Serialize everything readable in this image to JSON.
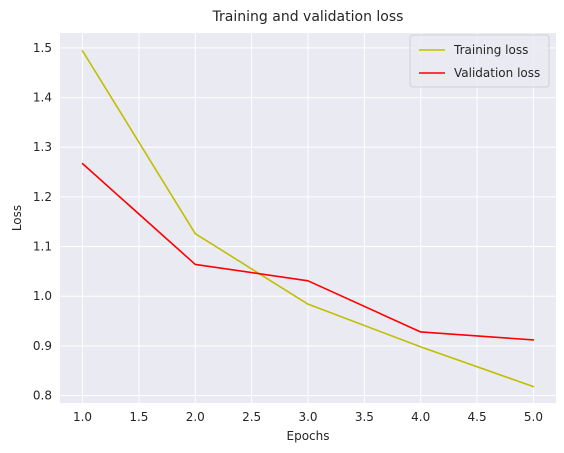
{
  "chart_data": {
    "type": "line",
    "title": "Training and validation loss",
    "xlabel": "Epochs",
    "ylabel": "Loss",
    "xlim": [
      0.8,
      5.2
    ],
    "ylim": [
      0.785,
      1.53
    ],
    "x_ticks": [
      "1.0",
      "1.5",
      "2.0",
      "2.5",
      "3.0",
      "3.5",
      "4.0",
      "4.5",
      "5.0"
    ],
    "y_ticks": [
      "0.8",
      "0.9",
      "1.0",
      "1.1",
      "1.2",
      "1.3",
      "1.4",
      "1.5"
    ],
    "grid": true,
    "legend_position": "top-right",
    "x": [
      1,
      2,
      3,
      4,
      5
    ],
    "series": [
      {
        "name": "Training loss",
        "color": "#bfbf00",
        "values": [
          1.494,
          1.126,
          0.984,
          0.898,
          0.818
        ]
      },
      {
        "name": "Validation loss",
        "color": "#ff0000",
        "values": [
          1.267,
          1.064,
          1.031,
          0.928,
          0.912
        ]
      }
    ],
    "background_color": "#eaeaf2",
    "grid_color": "#ffffff"
  }
}
